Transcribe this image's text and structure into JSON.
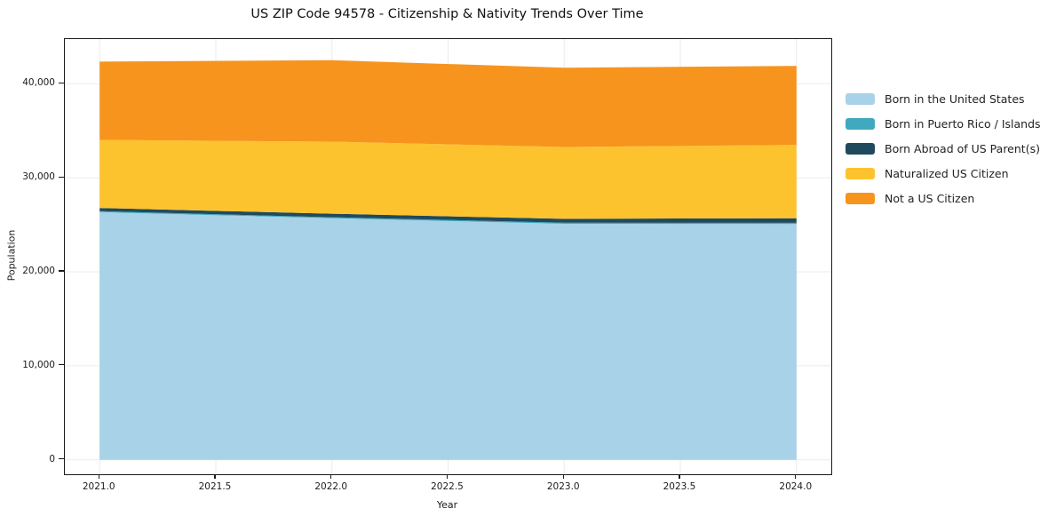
{
  "title": "US ZIP Code 94578 - Citizenship & Nativity Trends Over Time",
  "chart_data": {
    "type": "area",
    "stacked": true,
    "title": "US ZIP Code 94578 - Citizenship & Nativity Trends Over Time",
    "xlabel": "Year",
    "ylabel": "Population",
    "x": [
      2021,
      2022,
      2023,
      2024
    ],
    "series": [
      {
        "name": "Born in the United States",
        "color": "#a8d2e7",
        "values": [
          26350,
          25700,
          25100,
          25080
        ]
      },
      {
        "name": "Born in Puerto Rico / Islands",
        "color": "#41a9bf",
        "values": [
          100,
          100,
          110,
          120
        ]
      },
      {
        "name": "Born Abroad of US Parent(s)",
        "color": "#1f4a5e",
        "values": [
          330,
          380,
          420,
          500
        ]
      },
      {
        "name": "Naturalized US Citizen",
        "color": "#fdc32f",
        "values": [
          7250,
          7660,
          7640,
          7790
        ]
      },
      {
        "name": "Not a US Citizen",
        "color": "#f7941e",
        "values": [
          8320,
          8660,
          8430,
          8410
        ]
      }
    ],
    "totals": [
      42350,
      42500,
      41700,
      41900
    ],
    "xlim": [
      2020.85,
      2024.15
    ],
    "ylim": [
      -1540,
      44750
    ],
    "x_ticks": [
      2021.0,
      2021.5,
      2022.0,
      2022.5,
      2023.0,
      2023.5,
      2024.0
    ],
    "x_tick_labels": [
      "2021.0",
      "2021.5",
      "2022.0",
      "2022.5",
      "2023.0",
      "2023.5",
      "2024.0"
    ],
    "y_ticks": [
      0,
      10000,
      20000,
      30000,
      40000
    ],
    "y_tick_labels": [
      "0",
      "10,000",
      "20,000",
      "30,000",
      "40,000"
    ],
    "grid": true,
    "legend_position": "right-outside"
  },
  "colors": {
    "grid": "#ebebeb",
    "spine": "#1a1a1a",
    "text": "#1a1a1a",
    "background": "#ffffff"
  }
}
